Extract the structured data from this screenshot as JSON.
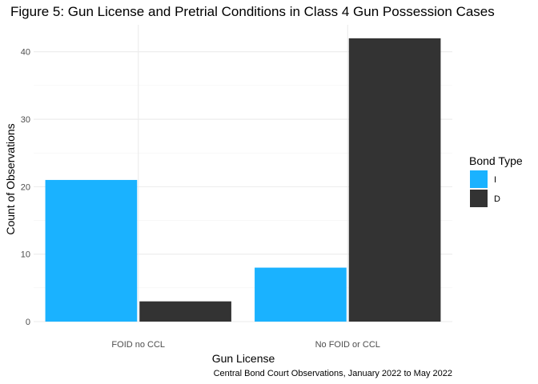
{
  "chart_data": {
    "type": "bar",
    "title": "Figure 5: Gun License and Pretrial Conditions in Class 4 Gun Possession Cases",
    "xlabel": "Gun License",
    "ylabel": "Count of Observations",
    "caption": "Central Bond Court Observations, January 2022 to May 2022",
    "categories": [
      "FOID no CCL",
      "No FOID or CCL"
    ],
    "series": [
      {
        "name": "I",
        "color": "#1AB2FF",
        "values": [
          21,
          8
        ]
      },
      {
        "name": "D",
        "color": "#333333",
        "values": [
          3,
          42
        ]
      }
    ],
    "ylim": [
      0,
      44
    ],
    "yticks": [
      0,
      10,
      20,
      30,
      40
    ],
    "legend": {
      "title": "Bond Type",
      "position": "right"
    },
    "grid": true
  }
}
